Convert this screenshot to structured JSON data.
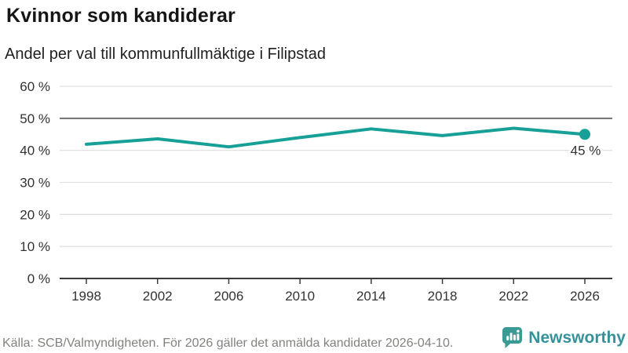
{
  "header": {
    "title": "Kvinnor som kandiderar",
    "subtitle": "Andel per val till kommunfullmäktige i Filipstad"
  },
  "footer": {
    "source": "Källa: SCB/Valmyndigheten. För 2026 gäller det anmälda kandidater 2026-04-10.",
    "brand": "Newsworthy"
  },
  "colors": {
    "line": "#16a097",
    "end_dot": "#16a097",
    "end_label_text": "#222222",
    "grid": "#e2e2e2",
    "grid_emphasis": "#6f6f6f",
    "axis": "#3b3b3b",
    "tick_label": "#333333",
    "title_text": "#161616",
    "source_text": "#82827f",
    "brand_teal": "#35929a"
  },
  "chart_data": {
    "type": "line",
    "title": "Kvinnor som kandiderar",
    "subtitle": "Andel per val till kommunfullmäktige i Filipstad",
    "categories": [
      "1998",
      "2002",
      "2006",
      "2010",
      "2014",
      "2018",
      "2022",
      "2026"
    ],
    "values": [
      41.9,
      43.6,
      41.1,
      44.0,
      46.7,
      44.6,
      46.9,
      45.0
    ],
    "end_label": "45 %",
    "xlabel": "",
    "ylabel": "",
    "ylim": [
      0,
      60
    ],
    "yticks": [
      {
        "value": 0,
        "label": "0 %"
      },
      {
        "value": 10,
        "label": "10 %"
      },
      {
        "value": 20,
        "label": "20 %"
      },
      {
        "value": 30,
        "label": "30 %"
      },
      {
        "value": 40,
        "label": "40 %"
      },
      {
        "value": 50,
        "label": "50 %"
      },
      {
        "value": 60,
        "label": "60 %"
      }
    ],
    "emphasized_gridline": 50,
    "grid": true,
    "legend": "none",
    "marker_last_point_only": true
  }
}
